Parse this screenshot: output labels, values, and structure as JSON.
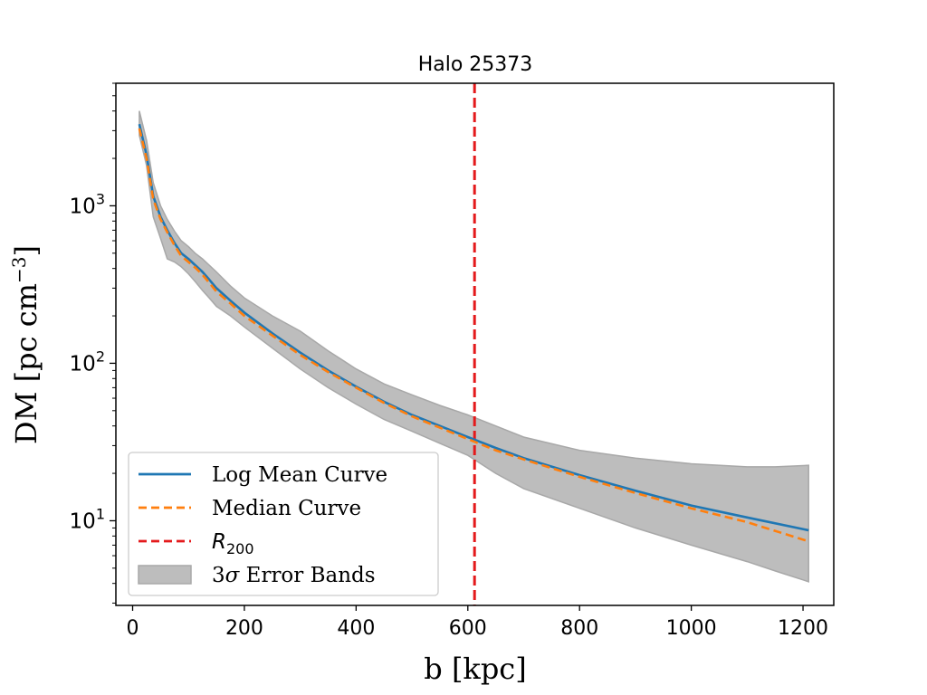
{
  "chart_data": {
    "type": "line",
    "title": "Halo 25373",
    "xlabel": "b [kpc]",
    "ylabel": "DM [pc cm",
    "ylabel_sup": "−3",
    "ylabel_close": "]",
    "xlim": [
      -30,
      1255
    ],
    "ylim": [
      2.9,
      6000
    ],
    "yscale": "log",
    "grid": false,
    "legend_position": "lower-left",
    "x_ticks": [
      {
        "value": 0,
        "label": "0"
      },
      {
        "value": 200,
        "label": "200"
      },
      {
        "value": 400,
        "label": "400"
      },
      {
        "value": 600,
        "label": "600"
      },
      {
        "value": 800,
        "label": "800"
      },
      {
        "value": 1000,
        "label": "1000"
      },
      {
        "value": 1200,
        "label": "1200"
      }
    ],
    "y_ticks": [
      {
        "value": 10,
        "base": "10",
        "exp": "1"
      },
      {
        "value": 100,
        "base": "10",
        "exp": "2"
      },
      {
        "value": 1000,
        "base": "10",
        "exp": "3"
      }
    ],
    "series": [
      {
        "name": "Log Mean Curve",
        "style": "solid",
        "color": "#1f77b4",
        "x": [
          12,
          25,
          37,
          50,
          62,
          75,
          87,
          100,
          112,
          125,
          137,
          150,
          175,
          200,
          250,
          300,
          350,
          400,
          450,
          500,
          550,
          600,
          650,
          700,
          800,
          900,
          1000,
          1100,
          1210
        ],
        "y": [
          3300,
          2100,
          1150,
          850,
          700,
          580,
          500,
          460,
          420,
          380,
          340,
          300,
          250,
          210,
          155,
          117,
          90,
          71,
          57,
          47,
          40,
          34,
          29,
          25,
          19.5,
          15.5,
          12.5,
          10.5,
          8.7
        ]
      },
      {
        "name": "Median Curve",
        "style": "dashed",
        "color": "#ff7f0e",
        "x": [
          12,
          25,
          37,
          50,
          62,
          75,
          87,
          100,
          112,
          125,
          137,
          150,
          175,
          200,
          250,
          300,
          350,
          400,
          450,
          500,
          550,
          600,
          650,
          700,
          800,
          900,
          1000,
          1100,
          1210
        ],
        "y": [
          3100,
          2000,
          1100,
          820,
          680,
          560,
          480,
          440,
          405,
          365,
          325,
          285,
          240,
          200,
          150,
          113,
          88,
          70,
          56,
          46,
          39,
          33,
          28,
          24.5,
          19,
          15,
          12,
          9.8,
          7.4
        ]
      }
    ],
    "vline": {
      "name": "R",
      "sub": "200",
      "x": 612,
      "color": "#e41a1c",
      "style": "dashed"
    },
    "band": {
      "name": "3σ Error Bands",
      "color": "#bdbdbd",
      "x": [
        12,
        25,
        37,
        50,
        62,
        75,
        87,
        100,
        112,
        125,
        137,
        150,
        175,
        200,
        250,
        300,
        350,
        400,
        450,
        500,
        550,
        600,
        650,
        700,
        800,
        900,
        1000,
        1100,
        1150,
        1210
      ],
      "upper": [
        4000,
        2600,
        1400,
        1000,
        820,
        690,
        600,
        550,
        500,
        460,
        420,
        380,
        310,
        260,
        200,
        160,
        120,
        92,
        74,
        63,
        54,
        47,
        40,
        34,
        28,
        25,
        23,
        22,
        22,
        22.5
      ],
      "lower": [
        2800,
        1800,
        850,
        620,
        460,
        440,
        410,
        370,
        330,
        290,
        260,
        230,
        200,
        170,
        125,
        92,
        70,
        55,
        44,
        37,
        31,
        26,
        20,
        16,
        12,
        9,
        7,
        5.5,
        4.8,
        4.1
      ]
    },
    "legend": [
      {
        "label": "Log Mean Curve",
        "kind": "line",
        "color": "#1f77b4",
        "style": "solid"
      },
      {
        "label": "Median Curve",
        "kind": "line",
        "color": "#ff7f0e",
        "style": "dashed"
      },
      {
        "label": "R",
        "sub": "200",
        "kind": "line",
        "color": "#e41a1c",
        "style": "dashed",
        "italic": true
      },
      {
        "label": "3",
        "sigma": "σ",
        "rest": " Error Bands",
        "kind": "patch",
        "color": "#bdbdbd"
      }
    ]
  }
}
